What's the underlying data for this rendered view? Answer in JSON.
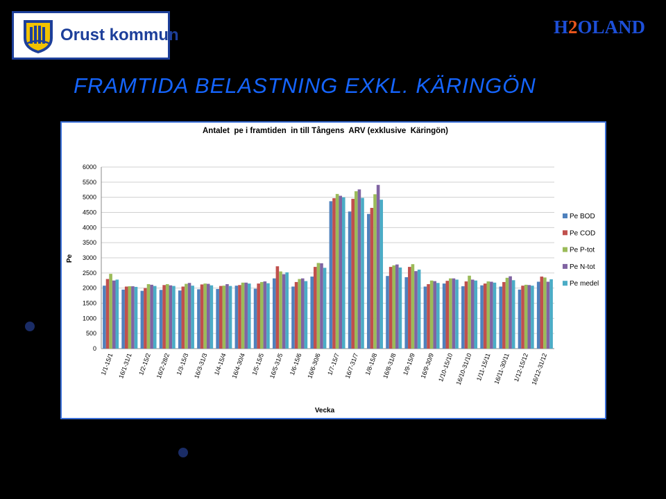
{
  "header": {
    "logo_text": "Orust kommun",
    "brand_h": "H",
    "brand_2": "2",
    "brand_rest": "OLAND",
    "title": "FRAMTIDA BELASTNING EXKL. KÄRINGÖN"
  },
  "colors": {
    "background": "#000000",
    "title": "#1565ff",
    "frame": "#3a6fd8",
    "series": [
      "#4f81bd",
      "#c0504d",
      "#9bbb59",
      "#8064a2",
      "#4bacc6"
    ]
  },
  "chart_data": {
    "type": "bar",
    "title": "Antalet  pe i framtiden  in till Tångens  ARV (exklusive  Käringön)",
    "xlabel": "Vecka",
    "ylabel": "Pe",
    "ylim": [
      0,
      6000
    ],
    "yticks": [
      0,
      500,
      1000,
      1500,
      2000,
      2500,
      3000,
      3500,
      4000,
      4500,
      5000,
      5500,
      6000
    ],
    "grid": true,
    "legend_position": "right",
    "categories": [
      "1/1-15/1",
      "16/1-31/1",
      "1/2-15/2",
      "16/2-28/2",
      "1/3-15/3",
      "16/3-31/3",
      "1/4-15/4",
      "16/4-30/4",
      "1/5-15/5",
      "16/5-31/5",
      "1/6-15/6",
      "16/6-30/6",
      "1/7-15/7",
      "16/7-31/7",
      "1/8-15/8",
      "16/8-31/8",
      "1/9-15/9",
      "16/9-30/9",
      "1/10-15/10",
      "16/10-31/10",
      "1/11-15/11",
      "16/11-30/11",
      "1/12-15/12",
      "16/12-31/12"
    ],
    "series": [
      {
        "name": "Pe BOD",
        "values": [
          2080,
          1950,
          1910,
          1940,
          1920,
          1960,
          1970,
          2080,
          1980,
          2320,
          2050,
          2380,
          4870,
          4530,
          4450,
          2400,
          2360,
          2050,
          2150,
          2060,
          2090,
          2050,
          1950,
          2210
        ]
      },
      {
        "name": "Pe COD",
        "values": [
          2300,
          2050,
          2000,
          2100,
          2050,
          2120,
          2070,
          2100,
          2150,
          2720,
          2200,
          2700,
          4970,
          4950,
          4650,
          2700,
          2700,
          2130,
          2240,
          2220,
          2150,
          2200,
          2080,
          2380
        ]
      },
      {
        "name": "Pe P-tot",
        "values": [
          2470,
          2060,
          2130,
          2130,
          2140,
          2150,
          2080,
          2180,
          2200,
          2550,
          2300,
          2830,
          5110,
          5200,
          5100,
          2750,
          2790,
          2250,
          2320,
          2410,
          2220,
          2340,
          2110,
          2350
        ]
      },
      {
        "name": "Pe N-tot",
        "values": [
          2250,
          2060,
          2110,
          2090,
          2170,
          2140,
          2130,
          2180,
          2220,
          2460,
          2320,
          2820,
          5050,
          5260,
          5410,
          2780,
          2560,
          2230,
          2320,
          2280,
          2210,
          2390,
          2100,
          2210
        ]
      },
      {
        "name": "Pe medel",
        "values": [
          2280,
          2040,
          2070,
          2070,
          2080,
          2090,
          2070,
          2150,
          2160,
          2520,
          2230,
          2670,
          5000,
          4980,
          4920,
          2680,
          2610,
          2170,
          2280,
          2250,
          2180,
          2260,
          2080,
          2290
        ]
      }
    ]
  }
}
